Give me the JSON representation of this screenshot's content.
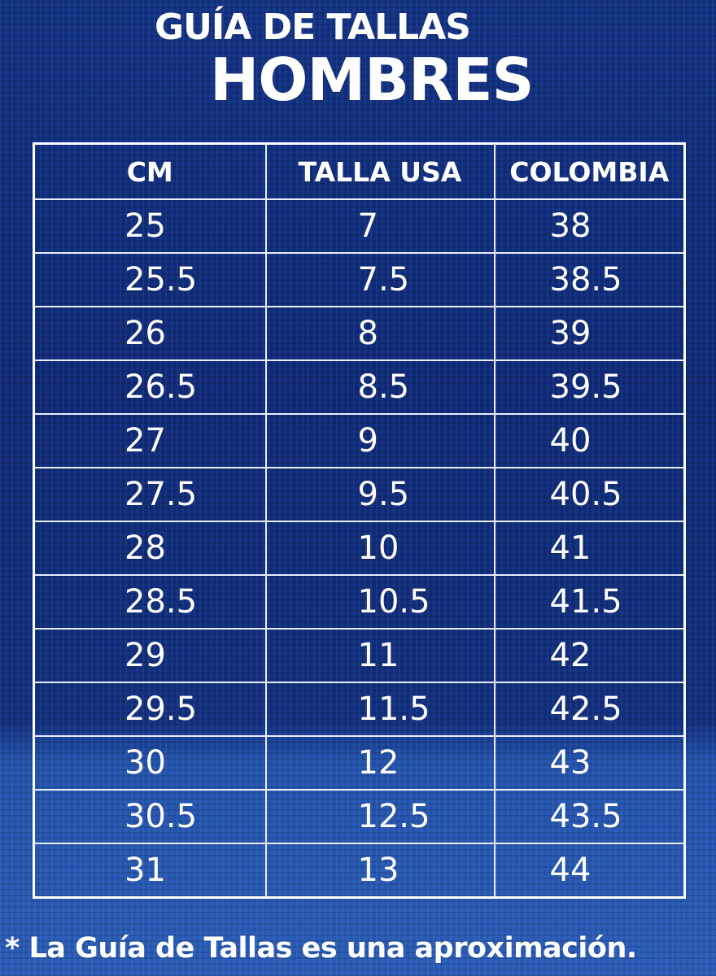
{
  "title_line1": "GUÍA DE TALLAS",
  "title_line2": "HOMBRES",
  "table": {
    "headers": [
      "CM",
      "TALLA USA",
      "COLOMBIA"
    ],
    "rows": [
      [
        "25",
        "7",
        "38"
      ],
      [
        "25.5",
        "7.5",
        "38.5"
      ],
      [
        "26",
        "8",
        "39"
      ],
      [
        "26.5",
        "8.5",
        "39.5"
      ],
      [
        "27",
        "9",
        "40"
      ],
      [
        "27.5",
        "9.5",
        "40.5"
      ],
      [
        "28",
        "10",
        "41"
      ],
      [
        "28.5",
        "10.5",
        "41.5"
      ],
      [
        "29",
        "11",
        "42"
      ],
      [
        "29.5",
        "11.5",
        "42.5"
      ],
      [
        "30",
        "12",
        "43"
      ],
      [
        "30.5",
        "12.5",
        "43.5"
      ],
      [
        "31",
        "13",
        "44"
      ]
    ]
  },
  "footnote": "* La Guía de Tallas es una aproximación.",
  "colors": {
    "background": "#0f2a78",
    "background_lower": "#2a5cb6",
    "text": "#ffffff"
  }
}
